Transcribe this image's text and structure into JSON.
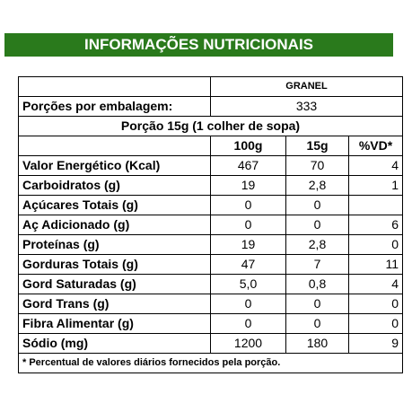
{
  "header": {
    "title": "INFORMAÇÕES NUTRICIONAIS"
  },
  "table": {
    "granel": "GRANEL",
    "servings_label": "Porções por embalagem:",
    "servings_value": "333",
    "portion": "Porção 15g (1 colher de sopa)",
    "columns": [
      "100g",
      "15g",
      "%VD*"
    ],
    "rows": [
      [
        "Valor Energético (Kcal)",
        "467",
        "70",
        "4"
      ],
      [
        "Carboidratos (g)",
        "19",
        "2,8",
        "1"
      ],
      [
        "Açúcares Totais (g)",
        "0",
        "0",
        null
      ],
      [
        "Aç Adicionado (g)",
        "0",
        "0",
        "6"
      ],
      [
        "Proteínas (g)",
        "19",
        "2,8",
        "0"
      ],
      [
        "Gorduras Totais (g)",
        "47",
        "7",
        "11"
      ],
      [
        "Gord Saturadas (g)",
        "5,0",
        "0,8",
        "4"
      ],
      [
        "Gord Trans (g)",
        "0",
        "0",
        "0"
      ],
      [
        "Fibra Alimentar (g)",
        "0",
        "0",
        "0"
      ],
      [
        "Sódio (mg)",
        "1200",
        "180",
        "9"
      ]
    ],
    "footnote": "* Percentual de valores diários fornecidos pela porção."
  }
}
